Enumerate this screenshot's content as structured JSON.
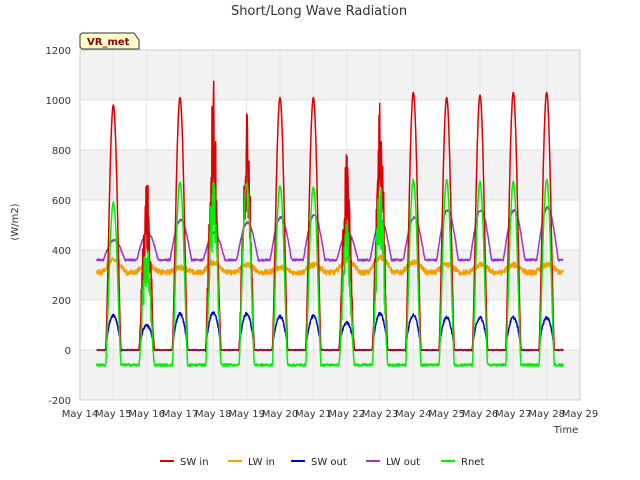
{
  "chart_data": {
    "type": "line",
    "title": "Short/Long Wave Radiation",
    "xlabel": "Time",
    "ylabel": "(W/m2)",
    "site_label": "VR_met",
    "ylim": [
      -200,
      1200
    ],
    "yticks": [
      -200,
      0,
      200,
      400,
      600,
      800,
      1000,
      1200
    ],
    "xlim": [
      14,
      29
    ],
    "xticks": [
      14,
      15,
      16,
      17,
      18,
      19,
      20,
      21,
      22,
      23,
      24,
      25,
      26,
      27,
      28,
      29
    ],
    "xtick_labels": [
      "May 14",
      "May 15",
      "May 16",
      "May 17",
      "May 18",
      "May 19",
      "May 20",
      "May 21",
      "May 22",
      "May 23",
      "May 24",
      "May 25",
      "May 26",
      "May 27",
      "May 28",
      "May 29"
    ],
    "grid": true,
    "legend_position": "bottom",
    "day_starts": [
      14.5,
      15.5,
      16.5,
      17.5,
      18.5,
      19.5,
      20.5,
      21.5,
      22.5,
      23.5,
      24.5,
      25.5,
      26.5,
      27.5
    ],
    "series": [
      {
        "name": "SW in",
        "color": "#dd0000",
        "daily_peak": [
          980,
          700,
          1010,
          1080,
          1020,
          1010,
          1010,
          800,
          1050,
          1030,
          1010,
          1020,
          1030,
          1030
        ],
        "night": 0
      },
      {
        "name": "LW in",
        "color": "#f0a000",
        "daily_peak": [
          360,
          340,
          330,
          350,
          340,
          330,
          340,
          360,
          370,
          350,
          340,
          340,
          340,
          340
        ],
        "night": 310
      },
      {
        "name": "SW out",
        "color": "#0000cc",
        "daily_peak": [
          140,
          100,
          145,
          150,
          145,
          135,
          135,
          110,
          145,
          140,
          130,
          130,
          130,
          130
        ],
        "night": 0
      },
      {
        "name": "LW out",
        "color": "#9933cc",
        "daily_peak": [
          440,
          470,
          520,
          470,
          510,
          530,
          540,
          470,
          520,
          530,
          560,
          560,
          560,
          570
        ],
        "night": 360
      },
      {
        "name": "Rnet",
        "color": "#00ee00",
        "daily_peak": [
          590,
          450,
          670,
          730,
          670,
          660,
          650,
          540,
          700,
          680,
          680,
          670,
          670,
          680
        ],
        "night": -60
      }
    ]
  }
}
